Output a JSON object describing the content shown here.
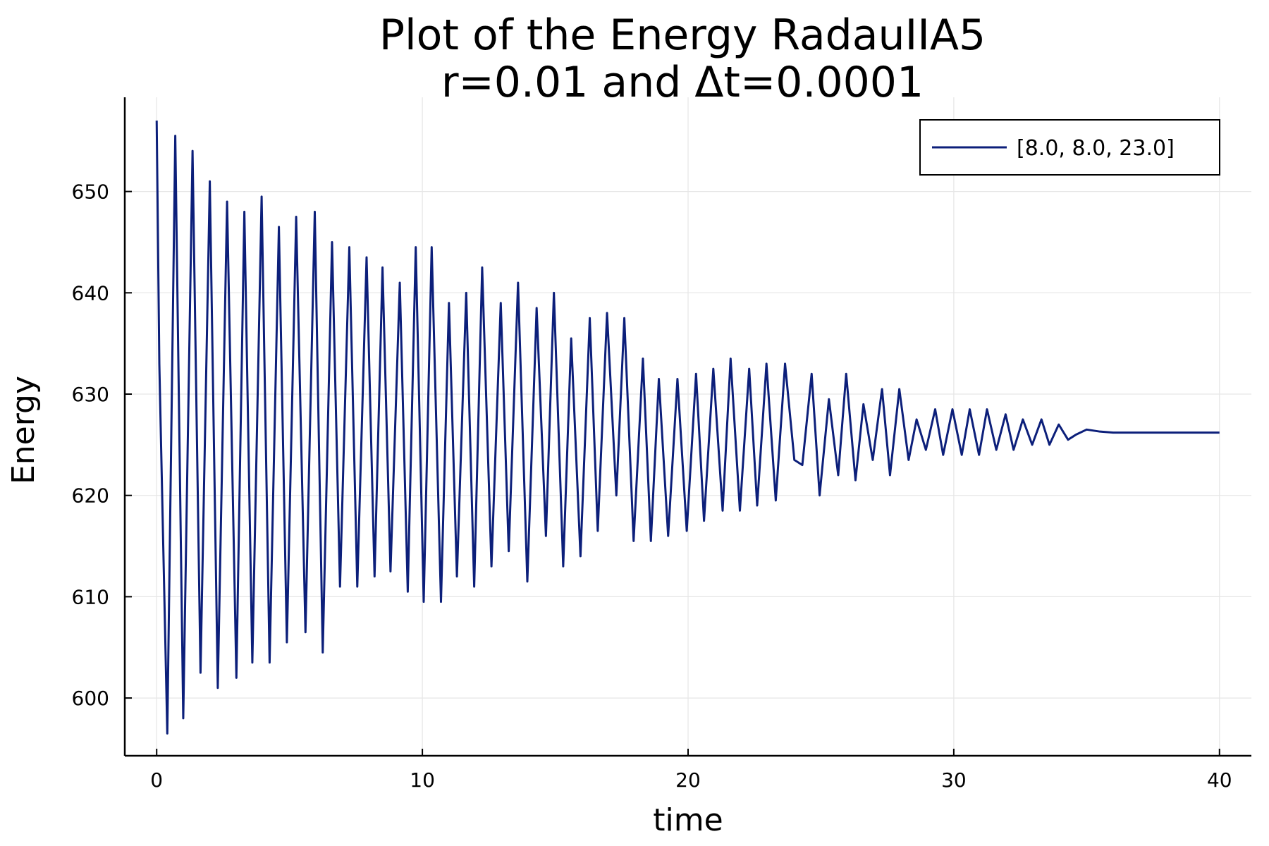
{
  "chart_data": {
    "type": "line",
    "title": [
      "Plot of the Energy RadauIIA5",
      "r=0.01 and Δt=0.0001"
    ],
    "xlabel": "time",
    "ylabel": "Energy",
    "xlim": [
      -1.2,
      41.2
    ],
    "ylim": [
      594.3,
      659.3
    ],
    "xticks": [
      0,
      10,
      20,
      30,
      40
    ],
    "yticks": [
      600,
      610,
      620,
      630,
      640,
      650
    ],
    "grid": true,
    "legend_position": "top-right",
    "series": [
      {
        "name": "[8.0, 8.0, 23.0]",
        "color": "#0c1f7a",
        "x": [
          0,
          0.1,
          0.4,
          0.7,
          1.0,
          1.35,
          1.65,
          2.0,
          2.3,
          2.65,
          3.0,
          3.3,
          3.6,
          3.95,
          4.25,
          4.6,
          4.9,
          5.25,
          5.6,
          5.95,
          6.25,
          6.6,
          6.9,
          7.25,
          7.55,
          7.9,
          8.2,
          8.5,
          8.8,
          9.15,
          9.45,
          9.75,
          10.05,
          10.35,
          10.7,
          11.0,
          11.3,
          11.65,
          11.95,
          12.25,
          12.6,
          12.95,
          13.25,
          13.6,
          13.95,
          14.3,
          14.65,
          14.95,
          15.3,
          15.6,
          15.95,
          16.3,
          16.6,
          16.95,
          17.3,
          17.6,
          17.95,
          18.3,
          18.6,
          18.9,
          19.25,
          19.6,
          19.95,
          20.3,
          20.6,
          20.95,
          21.3,
          21.6,
          21.95,
          22.3,
          22.6,
          22.95,
          23.3,
          23.65,
          24.0,
          24.3,
          24.65,
          24.95,
          25.3,
          25.65,
          25.95,
          26.3,
          26.6,
          26.95,
          27.3,
          27.6,
          27.95,
          28.3,
          28.6,
          28.95,
          29.3,
          29.6,
          29.95,
          30.3,
          30.6,
          30.95,
          31.25,
          31.6,
          31.95,
          32.25,
          32.6,
          32.95,
          33.3,
          33.6,
          33.95,
          34.3,
          34.6,
          35.0,
          35.5,
          36.0,
          36.5,
          37.0,
          38.0,
          39.0,
          40.0
        ],
        "y": [
          657.0,
          633.0,
          596.5,
          655.5,
          598.0,
          654.0,
          602.5,
          651.0,
          601.0,
          649.0,
          602.0,
          648.0,
          603.5,
          649.5,
          603.5,
          646.5,
          605.5,
          647.5,
          606.5,
          648.0,
          604.5,
          645.0,
          611.0,
          644.5,
          611.0,
          643.5,
          612.0,
          642.5,
          612.5,
          641.0,
          610.5,
          644.5,
          609.5,
          644.5,
          609.5,
          639.0,
          612.0,
          640.0,
          611.0,
          642.5,
          613.0,
          639.0,
          614.5,
          641.0,
          611.5,
          638.5,
          616.0,
          640.0,
          613.0,
          635.5,
          614.0,
          637.5,
          616.5,
          638.0,
          620.0,
          637.5,
          615.5,
          633.5,
          615.5,
          631.5,
          616.0,
          631.5,
          616.5,
          632.0,
          617.5,
          632.5,
          618.5,
          633.5,
          618.5,
          632.5,
          619.0,
          633.0,
          619.5,
          633.0,
          623.5,
          623.0,
          632.0,
          620.0,
          629.5,
          622.0,
          632.0,
          621.5,
          629.0,
          623.5,
          630.5,
          622.0,
          630.5,
          623.5,
          627.5,
          624.5,
          628.5,
          624.0,
          628.5,
          624.0,
          628.5,
          624.0,
          628.5,
          624.5,
          628.0,
          624.5,
          627.5,
          625.0,
          627.5,
          625.0,
          627.0,
          625.5,
          626.0,
          626.5,
          626.3,
          626.2,
          626.2,
          626.2,
          626.2,
          626.2,
          626.2
        ]
      }
    ]
  }
}
